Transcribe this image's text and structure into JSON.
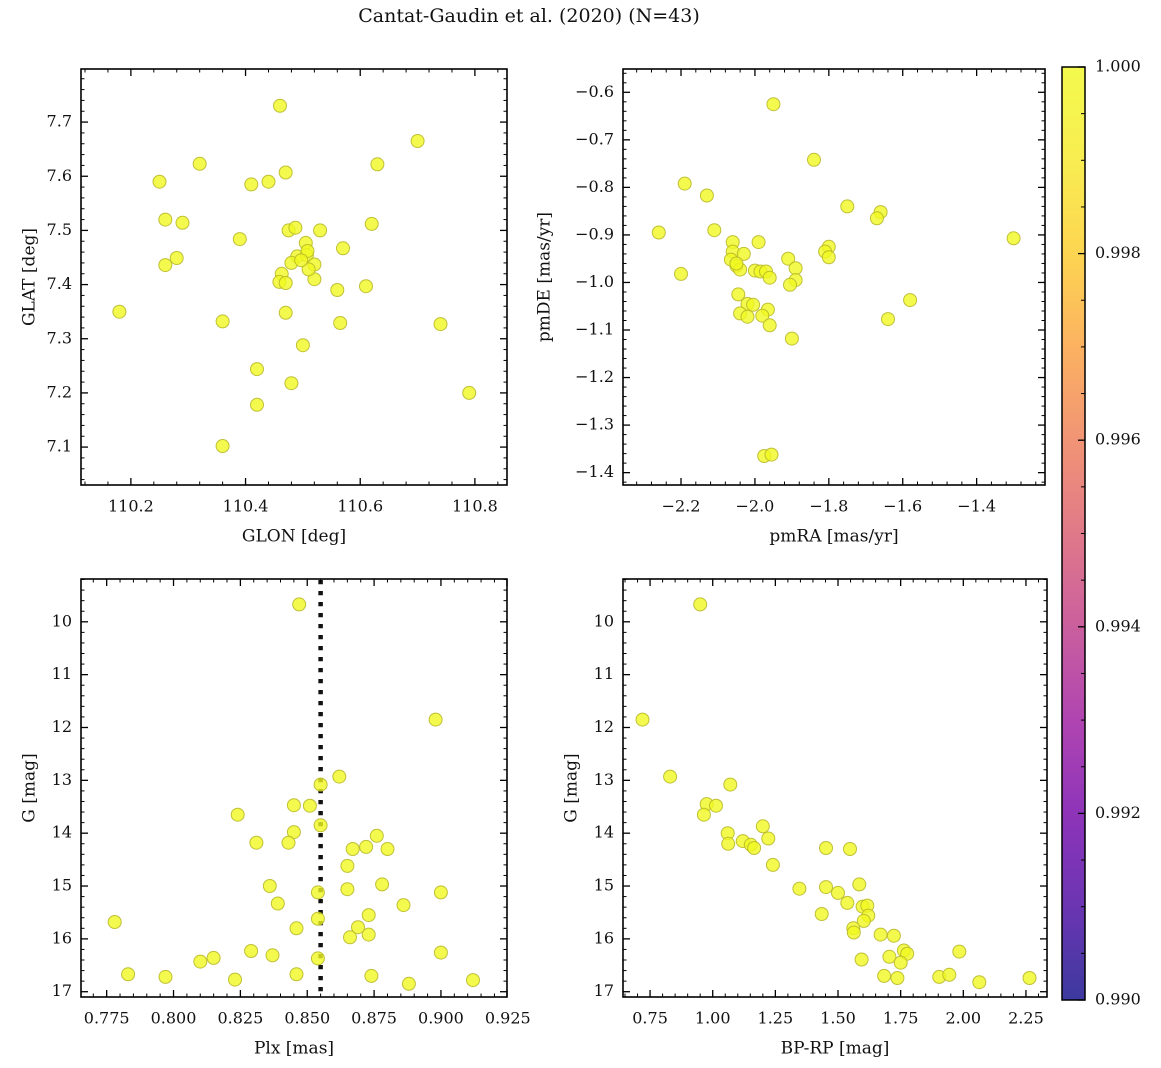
{
  "title": "Cantat-Gaudin et al. (2020) (N=43)",
  "style": {
    "marker_fill": "#f0f921",
    "marker_edge": "#b9b92a",
    "marker_alpha": 0.8,
    "marker_radius": 6.5,
    "axis_color": "#000000",
    "background": "#ffffff"
  },
  "chart_data": [
    {
      "type": "scatter",
      "id": "glon-glat",
      "xlabel": "GLON [deg]",
      "ylabel": "GLAT [deg]",
      "xlim": [
        110.113,
        110.856
      ],
      "ylim": [
        7.798,
        7.03
      ],
      "xticks": [
        110.2,
        110.4,
        110.6,
        110.8
      ],
      "xticklabels": [
        "110.2",
        "110.4",
        "110.6",
        "110.8"
      ],
      "yticks": [
        7.7,
        7.6,
        7.5,
        7.4,
        7.3,
        7.2,
        7.1
      ],
      "yticklabels": [
        "7.7",
        "7.6",
        "7.5",
        "7.4",
        "7.3",
        "7.2",
        "7.1"
      ],
      "x_minor_step": 0.04,
      "y_minor_step": 0.02,
      "points": [
        [
          110.46,
          7.73
        ],
        [
          110.7,
          7.665
        ],
        [
          110.32,
          7.623
        ],
        [
          110.63,
          7.622
        ],
        [
          110.47,
          7.607
        ],
        [
          110.25,
          7.59
        ],
        [
          110.41,
          7.585
        ],
        [
          110.44,
          7.59
        ],
        [
          110.26,
          7.52
        ],
        [
          110.29,
          7.514
        ],
        [
          110.62,
          7.512
        ],
        [
          110.475,
          7.5
        ],
        [
          110.487,
          7.505
        ],
        [
          110.53,
          7.5
        ],
        [
          110.39,
          7.484
        ],
        [
          110.505,
          7.477
        ],
        [
          110.57,
          7.467
        ],
        [
          110.49,
          7.452
        ],
        [
          110.507,
          7.454
        ],
        [
          110.48,
          7.44
        ],
        [
          110.52,
          7.437
        ],
        [
          110.28,
          7.449
        ],
        [
          110.26,
          7.436
        ],
        [
          110.508,
          7.462
        ],
        [
          110.52,
          7.41
        ],
        [
          110.463,
          7.42
        ],
        [
          110.459,
          7.405
        ],
        [
          110.47,
          7.403
        ],
        [
          110.51,
          7.428
        ],
        [
          110.56,
          7.39
        ],
        [
          110.61,
          7.397
        ],
        [
          110.18,
          7.35
        ],
        [
          110.47,
          7.348
        ],
        [
          110.36,
          7.332
        ],
        [
          110.565,
          7.329
        ],
        [
          110.74,
          7.327
        ],
        [
          110.5,
          7.288
        ],
        [
          110.42,
          7.244
        ],
        [
          110.48,
          7.218
        ],
        [
          110.79,
          7.2
        ],
        [
          110.42,
          7.178
        ],
        [
          110.36,
          7.102
        ],
        [
          110.497,
          7.445
        ]
      ]
    },
    {
      "type": "scatter",
      "id": "pmra-pmde",
      "xlabel": "pmRA [mas/yr]",
      "ylabel": "pmDE [mas/yr]",
      "xlim": [
        -2.357,
        -1.215
      ],
      "ylim": [
        -0.551,
        -1.426
      ],
      "xticks": [
        -2.2,
        -2.0,
        -1.8,
        -1.6,
        -1.4
      ],
      "xticklabels": [
        "−2.2",
        "−2.0",
        "−1.8",
        "−1.6",
        "−1.4"
      ],
      "yticks": [
        -0.6,
        -0.7,
        -0.8,
        -0.9,
        -1.0,
        -1.1,
        -1.2,
        -1.3,
        -1.4
      ],
      "yticklabels": [
        "−0.6",
        "−0.7",
        "−0.8",
        "−0.9",
        "−1.0",
        "−1.1",
        "−1.2",
        "−1.3",
        "−1.4"
      ],
      "x_minor_step": 0.04,
      "y_minor_step": 0.02,
      "points": [
        [
          -1.95,
          -0.625
        ],
        [
          -1.84,
          -0.742
        ],
        [
          -2.19,
          -0.792
        ],
        [
          -2.13,
          -0.817
        ],
        [
          -1.75,
          -0.84
        ],
        [
          -1.66,
          -0.852
        ],
        [
          -1.67,
          -0.865
        ],
        [
          -2.26,
          -0.895
        ],
        [
          -2.11,
          -0.89
        ],
        [
          -1.3,
          -0.907
        ],
        [
          -2.06,
          -0.915
        ],
        [
          -1.99,
          -0.915
        ],
        [
          -1.8,
          -0.925
        ],
        [
          -2.06,
          -0.935
        ],
        [
          -2.03,
          -0.94
        ],
        [
          -1.81,
          -0.935
        ],
        [
          -1.8,
          -0.947
        ],
        [
          -2.065,
          -0.952
        ],
        [
          -1.91,
          -0.95
        ],
        [
          -2.05,
          -0.965
        ],
        [
          -2.04,
          -0.973
        ],
        [
          -2.0,
          -0.975
        ],
        [
          -1.89,
          -0.97
        ],
        [
          -1.985,
          -0.977
        ],
        [
          -1.97,
          -0.977
        ],
        [
          -2.2,
          -0.982
        ],
        [
          -1.96,
          -0.99
        ],
        [
          -1.89,
          -0.995
        ],
        [
          -1.905,
          -1.005
        ],
        [
          -2.045,
          -1.025
        ],
        [
          -2.02,
          -1.045
        ],
        [
          -2.005,
          -1.047
        ],
        [
          -1.965,
          -1.057
        ],
        [
          -2.04,
          -1.065
        ],
        [
          -2.02,
          -1.072
        ],
        [
          -1.98,
          -1.07
        ],
        [
          -1.64,
          -1.077
        ],
        [
          -1.58,
          -1.037
        ],
        [
          -1.96,
          -1.09
        ],
        [
          -1.9,
          -1.118
        ],
        [
          -1.975,
          -1.365
        ],
        [
          -1.955,
          -1.362
        ],
        [
          -2.05,
          -0.96
        ]
      ]
    },
    {
      "type": "scatter",
      "id": "plx-g",
      "xlabel": "Plx [mas]",
      "ylabel": "G [mag]",
      "xlim": [
        0.7654,
        0.9247
      ],
      "ylim": [
        9.19,
        17.1
      ],
      "xticks": [
        0.775,
        0.8,
        0.825,
        0.85,
        0.875,
        0.9,
        0.925
      ],
      "xticklabels": [
        "0.775",
        "0.800",
        "0.825",
        "0.850",
        "0.875",
        "0.900",
        "0.925"
      ],
      "yticks": [
        10,
        11,
        12,
        13,
        14,
        15,
        16,
        17
      ],
      "yticklabels": [
        "10",
        "11",
        "12",
        "13",
        "14",
        "15",
        "16",
        "17"
      ],
      "x_minor_step": 0.005,
      "y_minor_step": 0.2,
      "vline": {
        "x": 0.855,
        "style": "dotted",
        "color": "#111111"
      },
      "points": [
        [
          0.847,
          9.67
        ],
        [
          0.898,
          11.85
        ],
        [
          0.862,
          12.93
        ],
        [
          0.855,
          13.08
        ],
        [
          0.845,
          13.47
        ],
        [
          0.851,
          13.48
        ],
        [
          0.824,
          13.65
        ],
        [
          0.855,
          13.85
        ],
        [
          0.876,
          14.05
        ],
        [
          0.845,
          13.98
        ],
        [
          0.831,
          14.18
        ],
        [
          0.843,
          14.18
        ],
        [
          0.867,
          14.3
        ],
        [
          0.872,
          14.26
        ],
        [
          0.88,
          14.3
        ],
        [
          0.865,
          14.62
        ],
        [
          0.836,
          15.0
        ],
        [
          0.878,
          14.97
        ],
        [
          0.865,
          15.06
        ],
        [
          0.854,
          15.12
        ],
        [
          0.9,
          15.12
        ],
        [
          0.839,
          15.33
        ],
        [
          0.886,
          15.36
        ],
        [
          0.873,
          15.55
        ],
        [
          0.854,
          15.62
        ],
        [
          0.778,
          15.68
        ],
        [
          0.869,
          15.78
        ],
        [
          0.846,
          15.8
        ],
        [
          0.866,
          15.97
        ],
        [
          0.873,
          15.92
        ],
        [
          0.829,
          16.23
        ],
        [
          0.837,
          16.31
        ],
        [
          0.815,
          16.36
        ],
        [
          0.81,
          16.43
        ],
        [
          0.854,
          16.37
        ],
        [
          0.9,
          16.26
        ],
        [
          0.783,
          16.67
        ],
        [
          0.797,
          16.72
        ],
        [
          0.846,
          16.67
        ],
        [
          0.874,
          16.7
        ],
        [
          0.823,
          16.77
        ],
        [
          0.888,
          16.85
        ],
        [
          0.912,
          16.78
        ]
      ]
    },
    {
      "type": "scatter",
      "id": "bprp-g",
      "xlabel": "BP-RP [mag]",
      "ylabel": "G [mag]",
      "xlim": [
        0.642,
        2.334
      ],
      "ylim": [
        9.19,
        17.1
      ],
      "xticks": [
        0.75,
        1.0,
        1.25,
        1.5,
        1.75,
        2.0,
        2.25
      ],
      "xticklabels": [
        "0.75",
        "1.00",
        "1.25",
        "1.50",
        "1.75",
        "2.00",
        "2.25"
      ],
      "yticks": [
        10,
        11,
        12,
        13,
        14,
        15,
        16,
        17
      ],
      "yticklabels": [
        "10",
        "11",
        "12",
        "13",
        "14",
        "15",
        "16",
        "17"
      ],
      "x_minor_step": 0.05,
      "y_minor_step": 0.2,
      "points": [
        [
          0.95,
          9.67
        ],
        [
          0.72,
          11.85
        ],
        [
          0.83,
          12.93
        ],
        [
          1.07,
          13.08
        ],
        [
          0.976,
          13.45
        ],
        [
          1.013,
          13.48
        ],
        [
          0.965,
          13.65
        ],
        [
          1.2,
          13.87
        ],
        [
          1.06,
          14.0
        ],
        [
          1.062,
          14.2
        ],
        [
          1.222,
          14.1
        ],
        [
          1.12,
          14.15
        ],
        [
          1.152,
          14.22
        ],
        [
          1.165,
          14.28
        ],
        [
          1.452,
          14.28
        ],
        [
          1.548,
          14.3
        ],
        [
          1.24,
          14.6
        ],
        [
          1.346,
          15.05
        ],
        [
          1.452,
          15.02
        ],
        [
          1.5,
          15.13
        ],
        [
          1.585,
          14.97
        ],
        [
          1.537,
          15.32
        ],
        [
          1.598,
          15.39
        ],
        [
          1.617,
          15.37
        ],
        [
          1.435,
          15.53
        ],
        [
          1.621,
          15.56
        ],
        [
          1.603,
          15.66
        ],
        [
          1.561,
          15.8
        ],
        [
          1.563,
          15.88
        ],
        [
          1.67,
          15.92
        ],
        [
          1.723,
          15.94
        ],
        [
          1.763,
          16.22
        ],
        [
          1.776,
          16.28
        ],
        [
          1.594,
          16.39
        ],
        [
          1.705,
          16.34
        ],
        [
          1.75,
          16.45
        ],
        [
          1.984,
          16.24
        ],
        [
          1.684,
          16.7
        ],
        [
          1.737,
          16.74
        ],
        [
          1.904,
          16.72
        ],
        [
          1.944,
          16.68
        ],
        [
          2.064,
          16.82
        ],
        [
          2.264,
          16.74
        ]
      ]
    }
  ],
  "colorbar": {
    "cmap": "plasma",
    "vmin": 0.99,
    "vmax": 1.0,
    "tick_values": [
      1.0,
      0.998,
      0.996,
      0.994,
      0.992,
      0.99
    ],
    "tick_labels": [
      "1.000",
      "0.998",
      "0.996",
      "0.994",
      "0.992",
      "0.990"
    ],
    "minor_step": 0.0005,
    "gradient_top_to_bottom": [
      "#f3fa4d",
      "#f8ed51",
      "#fdd551",
      "#fcb261",
      "#f19475",
      "#e07989",
      "#ca5f9e",
      "#b045b1",
      "#8e34b9",
      "#6b35b2",
      "#3d399f"
    ]
  }
}
